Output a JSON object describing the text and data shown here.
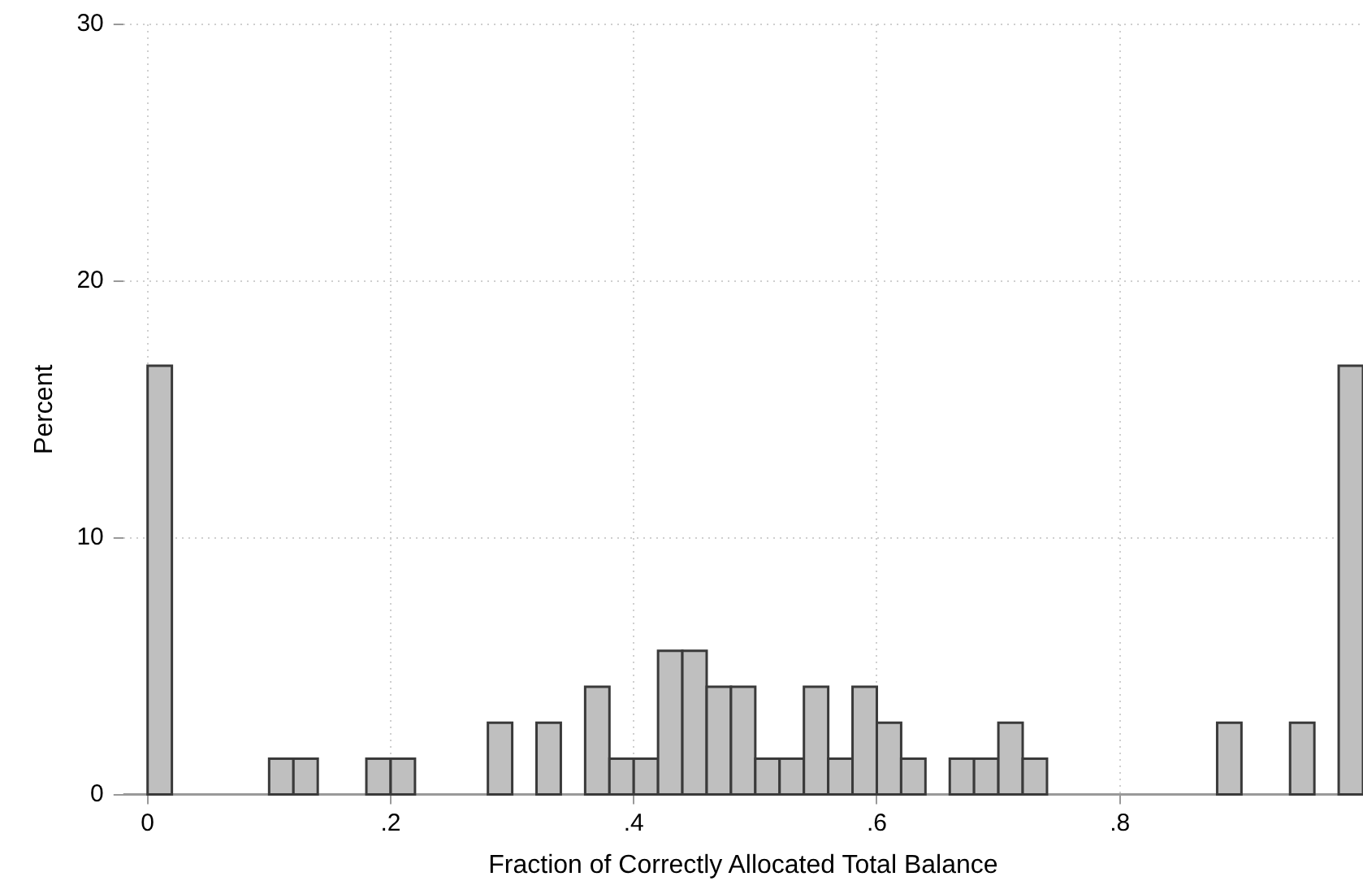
{
  "chart_data": {
    "type": "histogram",
    "xlabel": "Fraction of Correctly Allocated Total Balance",
    "ylabel": "Percent",
    "bins": [
      0,
      0.02,
      0.04,
      0.06,
      0.08,
      0.1,
      0.12,
      0.14,
      0.16,
      0.18,
      0.2,
      0.22,
      0.24,
      0.26,
      0.28,
      0.3,
      0.32,
      0.34,
      0.36,
      0.38,
      0.4,
      0.42,
      0.44,
      0.46,
      0.48,
      0.5,
      0.52,
      0.54,
      0.56,
      0.58,
      0.6,
      0.62,
      0.64,
      0.66,
      0.68,
      0.7,
      0.72,
      0.74,
      0.76,
      0.78,
      0.8,
      0.82,
      0.84,
      0.86,
      0.88,
      0.9,
      0.92,
      0.94,
      0.96,
      0.98,
      1
    ],
    "values": [
      16.7,
      0,
      0,
      0,
      0,
      1.4,
      1.4,
      0,
      0,
      1.4,
      1.4,
      0,
      0,
      0,
      2.8,
      0,
      2.8,
      0,
      4.2,
      1.4,
      1.4,
      5.6,
      5.6,
      4.2,
      4.2,
      1.4,
      1.4,
      4.2,
      1.4,
      4.2,
      2.8,
      1.4,
      0,
      1.4,
      1.4,
      2.8,
      1.4,
      0,
      0,
      0,
      0,
      0,
      0,
      0,
      2.8,
      0,
      0,
      2.8,
      0,
      16.7
    ],
    "color": "#bfbfbf",
    "xlim": [
      -0.02,
      1
    ],
    "xticks": [
      0,
      {
        "value": 0.2,
        "label": ".2"
      },
      {
        "value": 0.4,
        "label": ".4"
      },
      {
        "value": 0.6,
        "label": ".6"
      },
      {
        "value": 0.8,
        "label": ".8"
      }
    ],
    "ylim": [
      0,
      30
    ],
    "yticks": [
      0,
      10,
      20,
      30
    ],
    "grid": true,
    "legend": false
  }
}
